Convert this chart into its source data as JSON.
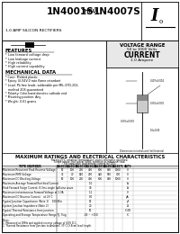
{
  "white": "#ffffff",
  "black": "#000000",
  "light_gray": "#e8e8e8",
  "mid_gray": "#cccccc",
  "dark_gray": "#888888",
  "line_gray": "#999999",
  "title_main": "1N4001S",
  "title_thru": "THRU",
  "title_end": "1N4007S",
  "subtitle": "1.0 AMP SILICON RECTIFIERS",
  "logo_letter": "I",
  "logo_sub": "o",
  "features_title": "FEATURES",
  "features": [
    "* Low forward voltage drop",
    "* Low leakage current",
    "* High reliability",
    "* High current capability"
  ],
  "mech_title": "MECHANICAL DATA",
  "mech": [
    "* Case: Molded plastic",
    "* Epoxy: UL94V-0 rate flame retardant",
    "* Lead: Pb free leads, solderable per MIL-STD-202,",
    "   method 208 guaranteed",
    "* Polarity: Color band denotes cathode end",
    "* Mounting position: Any",
    "* Weight: 0.01 grams"
  ],
  "voltage_title": "VOLTAGE RANGE",
  "voltage_sub": "50 to 1000 Volts",
  "current_title": "CURRENT",
  "current_sub": "1.0 Ampere",
  "table_title": "MAXIMUM RATINGS AND ELECTRICAL CHARACTERISTICS",
  "table_note1": "Rating 25°C ambient temperature unless otherwise specified.",
  "table_note2": "Single phase, half wave, 60Hz, resistive or inductive load.",
  "table_note3": "For capacitive load derate current by 20%.",
  "col_headers": [
    "1N4001S",
    "1N4002S",
    "1N4003S",
    "1N4004S",
    "1N4005S",
    "1N4006S",
    "1N4007S",
    "UNITS"
  ],
  "row1_label": "Maximum Recurrent Peak Reverse Voltage",
  "row1_vals": [
    "50",
    "100",
    "200",
    "400",
    "600",
    "800",
    "1000",
    "V"
  ],
  "row2_label": "Maximum RMS Voltage",
  "row2_vals": [
    "35",
    "70",
    "140",
    "280",
    "420",
    "560",
    "700",
    "V"
  ],
  "row3_label": "Maximum DC Blocking Voltage",
  "row3_vals": [
    "50",
    "100",
    "200",
    "400",
    "600",
    "800",
    "1000",
    "V"
  ],
  "row4_label": "Maximum Average Forward Rectified Current",
  "row4_vals": [
    "",
    "",
    "",
    "1.0",
    "",
    "",
    "",
    "A"
  ],
  "row5_label": "Peak Forward Surge Current, 8.3ms single half-sine wave",
  "row5_vals": [
    "",
    "",
    "",
    "30",
    "",
    "",
    "",
    "A"
  ],
  "row6_label": "Maximum instantaneous Forward Voltage at 1.0A",
  "row6_vals": [
    "",
    "",
    "",
    "1.1",
    "",
    "",
    "",
    "V"
  ],
  "row7_label": "Maximum DC Reverse Current    at 25°C",
  "row7_sub": "at rated DC Blocking Voltage   at 100°C",
  "row7_vals": [
    "",
    "",
    "",
    "5.0",
    "",
    "",
    "",
    "μA"
  ],
  "row7b_vals": [
    "",
    "",
    "",
    "50",
    "",
    "",
    "",
    "μA"
  ],
  "row8_label": "Typical Junction Capacitance (Note 1)    100 KHz",
  "row8_vals": [
    "",
    "",
    "",
    "15",
    "",
    "",
    "",
    "pF"
  ],
  "row9_label": "System Junction Impedance (Note 2)",
  "row9_vals": [
    "",
    "",
    "",
    "20",
    "",
    "",
    "",
    "Ω"
  ],
  "row9b_label": "Typical Thermal Resistance from junction",
  "row9b_vals": [
    "",
    "",
    "",
    "50",
    "",
    "",
    "",
    "°C/W"
  ],
  "row10_label": "Operating and Storage Temperature Range TJ, Tstg",
  "row10_vals": [
    "",
    "",
    "",
    "-65 ~ +150",
    "",
    "",
    "",
    "°C"
  ],
  "notes": [
    "Notes:",
    "1. Measured at 1MHz and applied reverse voltage of 4.0V D.C.",
    "2. Thermal Resistance from Junction to Ambient, 37°C (3.8cm) lead length."
  ]
}
